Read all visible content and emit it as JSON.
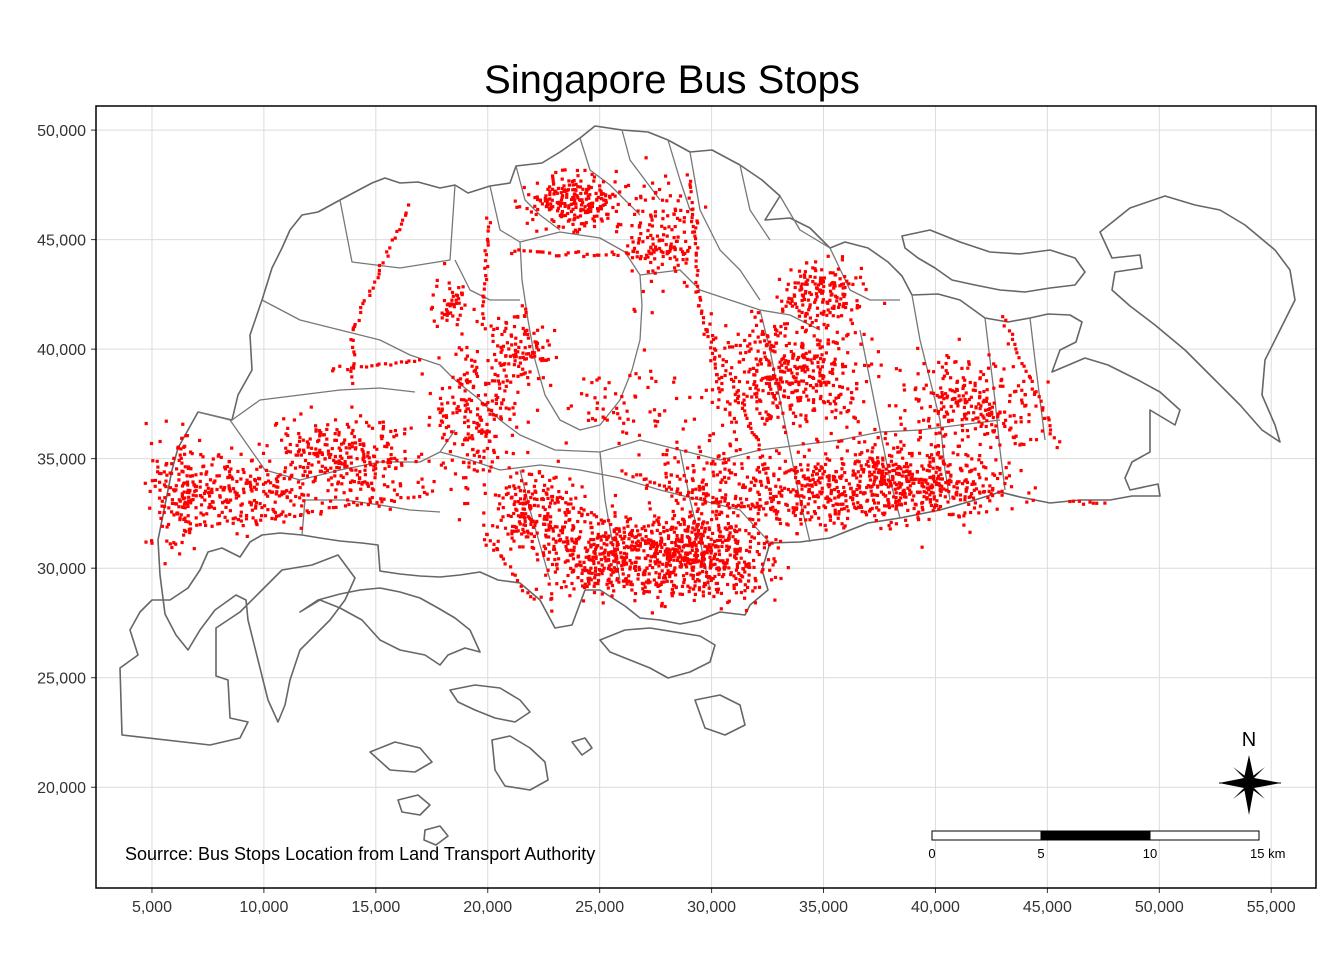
{
  "title": "Singapore Bus Stops",
  "caption": "Sourrce: Bus Stops Location from Land Transport Authority",
  "x_axis": {
    "range": [
      2500,
      57000
    ],
    "ticks": [
      5000,
      10000,
      15000,
      20000,
      25000,
      30000,
      35000,
      40000,
      45000,
      50000,
      55000
    ],
    "tick_labels": [
      "5,000",
      "10,000",
      "15,000",
      "20,000",
      "25,000",
      "30,000",
      "35,000",
      "40,000",
      "45,000",
      "50,000",
      "55,000"
    ]
  },
  "y_axis": {
    "range": [
      15400,
      51100
    ],
    "ticks": [
      20000,
      25000,
      30000,
      35000,
      40000,
      45000,
      50000
    ],
    "tick_labels": [
      "20,000",
      "25,000",
      "30,000",
      "35,000",
      "40,000",
      "45,000",
      "50,000"
    ]
  },
  "grid": true,
  "colors": {
    "points": "#ff0000",
    "boundaries": "#666666",
    "grid": "#dcdcdc"
  },
  "scale_bar": {
    "labels": [
      "0",
      "5",
      "10",
      "15 km"
    ],
    "km_values": [
      0,
      5,
      10,
      15
    ]
  },
  "north_arrow": {
    "label": "N",
    "icon": "compass-rose-icon"
  },
  "point_clusters": [
    {
      "x": 29500,
      "y": 30500,
      "sx": 2600,
      "sy": 1600,
      "n": 520
    },
    {
      "x": 25500,
      "y": 30500,
      "sx": 2500,
      "sy": 1600,
      "n": 360
    },
    {
      "x": 22000,
      "y": 32500,
      "sx": 2000,
      "sy": 1600,
      "n": 220
    },
    {
      "x": 33500,
      "y": 39000,
      "sx": 3000,
      "sy": 2200,
      "n": 420
    },
    {
      "x": 34500,
      "y": 33500,
      "sx": 3500,
      "sy": 1400,
      "n": 330
    },
    {
      "x": 40000,
      "y": 33800,
      "sx": 3000,
      "sy": 1300,
      "n": 300
    },
    {
      "x": 41500,
      "y": 37500,
      "sx": 2500,
      "sy": 1800,
      "n": 250
    },
    {
      "x": 13500,
      "y": 35000,
      "sx": 2800,
      "sy": 1600,
      "n": 300
    },
    {
      "x": 9000,
      "y": 33500,
      "sx": 2600,
      "sy": 1300,
      "n": 190
    },
    {
      "x": 6200,
      "y": 33500,
      "sx": 1100,
      "sy": 2300,
      "n": 150
    },
    {
      "x": 19500,
      "y": 37000,
      "sx": 1600,
      "sy": 2600,
      "n": 200
    },
    {
      "x": 24000,
      "y": 46800,
      "sx": 1800,
      "sy": 1100,
      "n": 230
    },
    {
      "x": 27800,
      "y": 45000,
      "sx": 1300,
      "sy": 2200,
      "n": 140
    },
    {
      "x": 35000,
      "y": 42500,
      "sx": 1600,
      "sy": 1300,
      "n": 170
    },
    {
      "x": 26000,
      "y": 37500,
      "sx": 2500,
      "sy": 1500,
      "n": 60
    },
    {
      "x": 21500,
      "y": 40000,
      "sx": 1200,
      "sy": 1500,
      "n": 110
    },
    {
      "x": 18400,
      "y": 42000,
      "sx": 800,
      "sy": 1200,
      "n": 50
    },
    {
      "x": 38000,
      "y": 34500,
      "sx": 2500,
      "sy": 1500,
      "n": 140
    },
    {
      "x": 29500,
      "y": 34000,
      "sx": 2000,
      "sy": 2000,
      "n": 120
    }
  ],
  "point_lines": [
    [
      [
        16500,
        46500
      ],
      [
        14000,
        41000
      ],
      [
        14000,
        38500
      ]
    ],
    [
      [
        20000,
        46000
      ],
      [
        19800,
        41000
      ]
    ],
    [
      [
        21000,
        44500
      ],
      [
        25000,
        44300
      ],
      [
        29000,
        44500
      ]
    ],
    [
      [
        13000,
        39000
      ],
      [
        17000,
        39500
      ]
    ],
    [
      [
        26000,
        34500
      ],
      [
        28500,
        33500
      ],
      [
        33000,
        32500
      ]
    ],
    [
      [
        22500,
        33500
      ],
      [
        26500,
        31500
      ],
      [
        30000,
        30000
      ]
    ],
    [
      [
        30000,
        40500
      ],
      [
        32000,
        36000
      ],
      [
        33000,
        32000
      ]
    ],
    [
      [
        43000,
        41500
      ],
      [
        44500,
        38000
      ],
      [
        45500,
        35500
      ]
    ],
    [
      [
        46000,
        33000
      ],
      [
        47500,
        33000
      ]
    ],
    [
      [
        7500,
        32000
      ],
      [
        12000,
        32500
      ],
      [
        17500,
        33500
      ]
    ],
    [
      [
        20000,
        31500
      ],
      [
        22000,
        28500
      ]
    ],
    [
      [
        29000,
        48000
      ],
      [
        29500,
        42000
      ],
      [
        30500,
        38000
      ]
    ]
  ]
}
